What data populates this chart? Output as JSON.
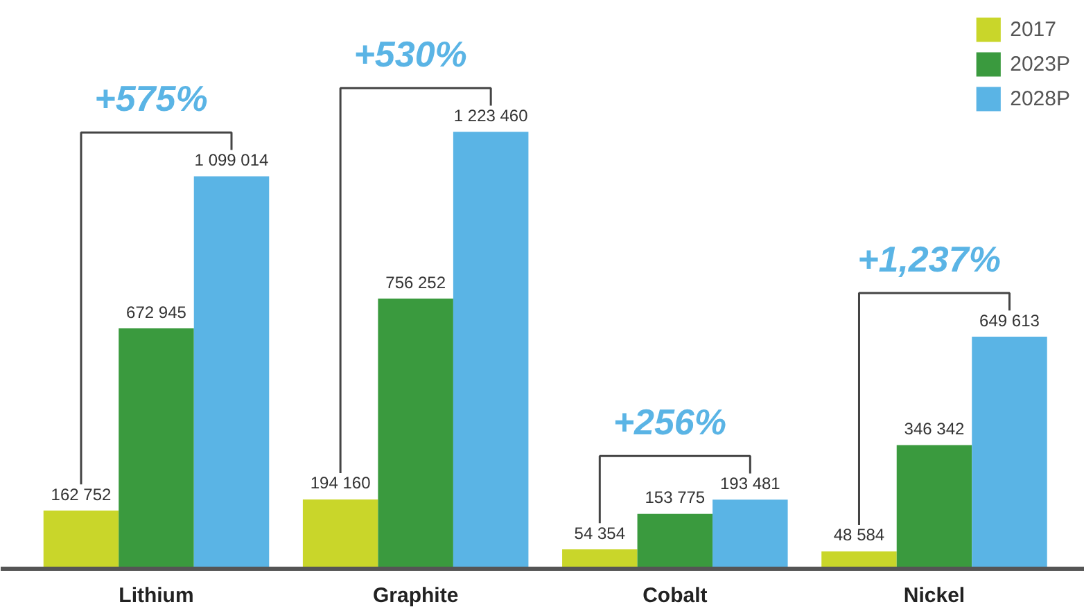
{
  "chart_data": {
    "type": "bar",
    "categories": [
      "Lithium",
      "Graphite",
      "Cobalt",
      "Nickel"
    ],
    "series": [
      {
        "name": "2017",
        "color": "#c9d62a",
        "values": [
          162752,
          194160,
          54354,
          48584
        ],
        "value_labels": [
          "162 752",
          "194 160",
          "54 354",
          "48 584"
        ]
      },
      {
        "name": "2023P",
        "color": "#3a9a3e",
        "values": [
          672945,
          756252,
          153775,
          346342
        ],
        "value_labels": [
          "672 945",
          "756 252",
          "153 775",
          "346 342"
        ]
      },
      {
        "name": "2028P",
        "color": "#5ab4e5",
        "values": [
          1099014,
          1223460,
          193481,
          649613
        ],
        "value_labels": [
          "1 099 014",
          "1 223 460",
          "193 481",
          "649 613"
        ]
      }
    ],
    "annotations": [
      "+575%",
      "+530%",
      "+256%",
      "+1,237%"
    ],
    "legend": "top right",
    "grid": false
  }
}
